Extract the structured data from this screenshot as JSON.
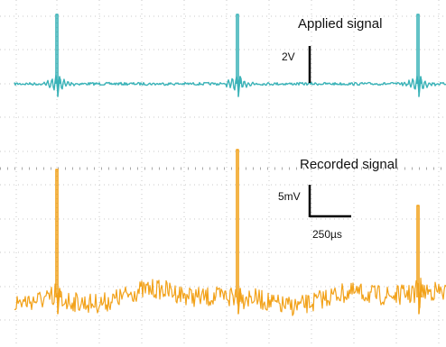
{
  "chart_data": {
    "type": "line",
    "title": "",
    "grid": true,
    "series": [
      {
        "name": "Applied signal",
        "color": "#3bb3b8",
        "pulse_times_us": [
          0,
          500,
          1000
        ],
        "baseline": 0,
        "scale": "2V"
      },
      {
        "name": "Recorded signal",
        "color": "#f2a21a",
        "pulse_times_us": [
          0,
          500,
          1000
        ],
        "baseline": 0,
        "scale": "5mV"
      }
    ],
    "annotations": {
      "applied_label": "Applied signal",
      "recorded_label": "Recorded signal",
      "voltage_scale_applied": "2V",
      "voltage_scale_recorded": "5mV",
      "time_scale": "250µs"
    }
  }
}
